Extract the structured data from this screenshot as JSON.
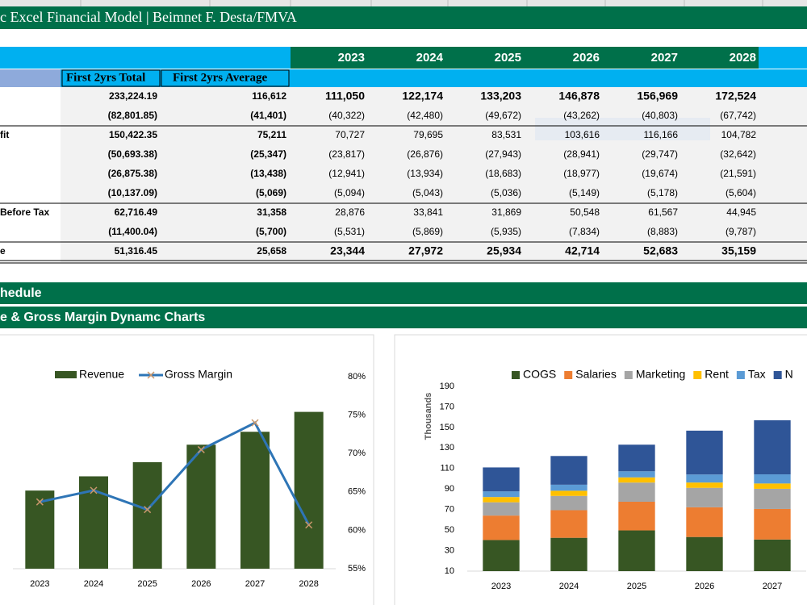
{
  "header": {
    "title": "c Excel Financial Model | Beimnet F. Desta/FMVA"
  },
  "table": {
    "years": [
      "2023",
      "2024",
      "2025",
      "2026",
      "2027",
      "2028"
    ],
    "subheaders": [
      "First 2yrs Total",
      "First 2yrs Average"
    ],
    "rows": [
      {
        "cells": [
          "233,224.19",
          "116,612",
          "111,050",
          "122,174",
          "133,203",
          "146,878",
          "156,969",
          "172,524"
        ]
      },
      {
        "cells": [
          "(82,801.85)",
          "(41,401)",
          "(40,322)",
          "(42,480)",
          "(49,672)",
          "(43,262)",
          "(40,803)",
          "(67,742)"
        ]
      },
      {
        "label": "fit",
        "cells": [
          "150,422.35",
          "75,211",
          "70,727",
          "79,695",
          "83,531",
          "103,616",
          "116,166",
          "104,782"
        ]
      },
      {
        "cells": [
          "(50,693.38)",
          "(25,347)",
          "(23,817)",
          "(26,876)",
          "(27,943)",
          "(28,941)",
          "(29,747)",
          "(32,642)"
        ]
      },
      {
        "cells": [
          "(26,875.38)",
          "(13,438)",
          "(12,941)",
          "(13,934)",
          "(18,683)",
          "(18,977)",
          "(19,674)",
          "(21,591)"
        ]
      },
      {
        "cells": [
          "(10,137.09)",
          "(5,069)",
          "(5,094)",
          "(5,043)",
          "(5,036)",
          "(5,149)",
          "(5,178)",
          "(5,604)"
        ]
      },
      {
        "label": "Before Tax",
        "cells": [
          "62,716.49",
          "31,358",
          "28,876",
          "33,841",
          "31,869",
          "50,548",
          "61,567",
          "44,945"
        ]
      },
      {
        "cells": [
          "(11,400.04)",
          "(5,700)",
          "(5,531)",
          "(5,869)",
          "(5,935)",
          "(7,834)",
          "(8,883)",
          "(9,787)"
        ]
      },
      {
        "label": "e",
        "cells": [
          "51,316.45",
          "25,658",
          "23,344",
          "27,972",
          "25,934",
          "42,714",
          "52,683",
          "35,159"
        ]
      }
    ]
  },
  "sections": [
    "hedule",
    "e & Gross Margin Dynamc Charts"
  ],
  "chart_data": [
    {
      "type": "bar_line",
      "categories": [
        "2023",
        "2024",
        "2025",
        "2026",
        "2027",
        "2028"
      ],
      "series": [
        {
          "name": "Revenue",
          "type": "bar",
          "color": "#375623",
          "values": [
            111050,
            122174,
            133203,
            146878,
            156969,
            172524
          ]
        },
        {
          "name": "Gross Margin",
          "type": "line",
          "axis": "y2",
          "color": "#2e75b6",
          "marker_color": "#c9966b",
          "values": [
            63.7,
            65.2,
            62.7,
            70.5,
            74.0,
            60.7
          ]
        }
      ],
      "ylim": [
        50000,
        200000
      ],
      "y2lim": [
        55,
        80
      ],
      "y2ticks": [
        {
          "value": 55,
          "label": "55%"
        },
        {
          "value": 60,
          "label": "60%"
        },
        {
          "value": 65,
          "label": "65%"
        },
        {
          "value": 70,
          "label": "70%"
        },
        {
          "value": 75,
          "label": "75%"
        },
        {
          "value": 80,
          "label": "80%"
        }
      ]
    },
    {
      "type": "stacked_bar",
      "y_label": "Thousands",
      "categories": [
        "2023",
        "2024",
        "2025",
        "2026",
        "2027"
      ],
      "series": [
        {
          "name": "COGS",
          "color": "#375623",
          "values": [
            40.322,
            42.48,
            49.672,
            43.262,
            40.803
          ]
        },
        {
          "name": "Salaries",
          "color": "#ed7d31",
          "values": [
            23.817,
            26.876,
            27.943,
            28.941,
            29.747
          ]
        },
        {
          "name": "Marketing",
          "color": "#a5a5a5",
          "values": [
            12.941,
            13.934,
            18.683,
            18.977,
            19.674
          ]
        },
        {
          "name": "Rent",
          "color": "#ffc000",
          "values": [
            5.094,
            5.043,
            5.036,
            5.149,
            5.178
          ]
        },
        {
          "name": "Tax",
          "color": "#5b9bd5",
          "values": [
            5.531,
            5.869,
            5.935,
            7.834,
            8.883
          ]
        },
        {
          "name": "N",
          "color": "#2f5597",
          "values": [
            23.344,
            27.972,
            25.934,
            42.714,
            52.683
          ]
        }
      ],
      "ylim": [
        10,
        190
      ],
      "yticks": [
        10,
        30,
        50,
        70,
        90,
        110,
        130,
        150,
        170,
        190
      ]
    }
  ]
}
